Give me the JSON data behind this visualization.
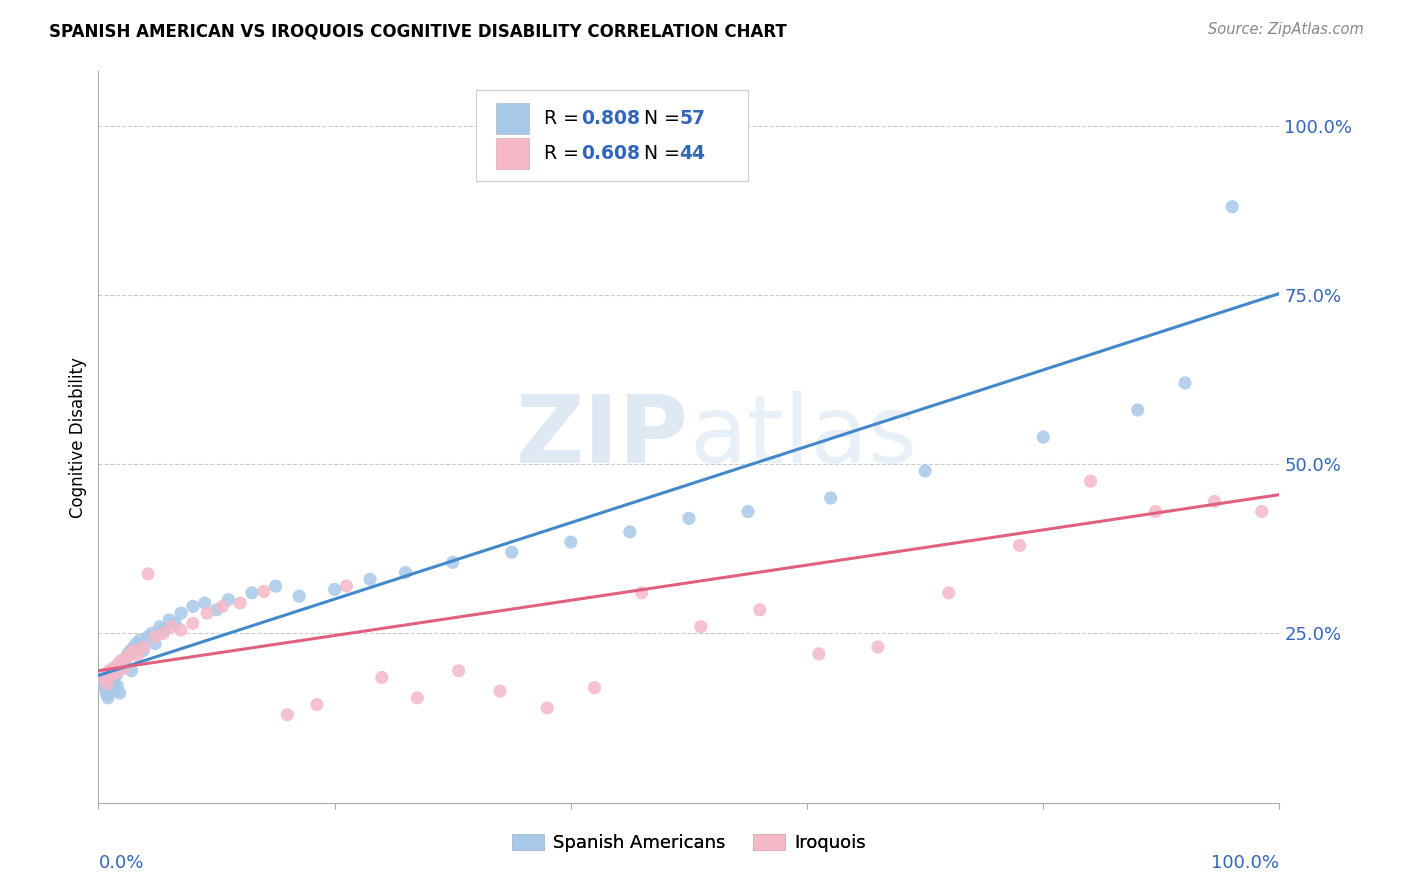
{
  "title": "SPANISH AMERICAN VS IROQUOIS COGNITIVE DISABILITY CORRELATION CHART",
  "source": "Source: ZipAtlas.com",
  "ylabel": "Cognitive Disability",
  "watermark_zip": "ZIP",
  "watermark_atlas": "atlas",
  "legend_bottom": [
    "Spanish Americans",
    "Iroquois"
  ],
  "blue_color": "#a8c8e8",
  "pink_color": "#f4b8c8",
  "blue_line_color": "#4488cc",
  "pink_line_color": "#e06080",
  "ytick_labels": [
    "100.0%",
    "75.0%",
    "50.0%",
    "25.0%"
  ],
  "ytick_values": [
    1.0,
    0.75,
    0.5,
    0.25
  ],
  "xlim": [
    0.0,
    1.0
  ],
  "ylim": [
    0.0,
    1.08
  ],
  "blue_scatter_x": [
    0.003,
    0.004,
    0.005,
    0.006,
    0.007,
    0.008,
    0.009,
    0.01,
    0.011,
    0.012,
    0.013,
    0.014,
    0.015,
    0.016,
    0.017,
    0.018,
    0.02,
    0.021,
    0.022,
    0.024,
    0.025,
    0.027,
    0.028,
    0.03,
    0.032,
    0.035,
    0.038,
    0.042,
    0.045,
    0.048,
    0.052,
    0.055,
    0.06,
    0.065,
    0.07,
    0.08,
    0.09,
    0.1,
    0.11,
    0.13,
    0.15,
    0.17,
    0.2,
    0.23,
    0.26,
    0.3,
    0.35,
    0.4,
    0.45,
    0.5,
    0.55,
    0.62,
    0.7,
    0.8,
    0.88,
    0.92,
    0.96
  ],
  "blue_scatter_y": [
    0.175,
    0.18,
    0.17,
    0.182,
    0.16,
    0.155,
    0.185,
    0.19,
    0.195,
    0.165,
    0.178,
    0.168,
    0.188,
    0.172,
    0.198,
    0.162,
    0.2,
    0.21,
    0.205,
    0.215,
    0.22,
    0.225,
    0.195,
    0.23,
    0.235,
    0.24,
    0.225,
    0.245,
    0.25,
    0.235,
    0.26,
    0.255,
    0.27,
    0.265,
    0.28,
    0.29,
    0.295,
    0.285,
    0.3,
    0.31,
    0.32,
    0.305,
    0.315,
    0.33,
    0.34,
    0.355,
    0.37,
    0.385,
    0.4,
    0.42,
    0.43,
    0.45,
    0.49,
    0.54,
    0.58,
    0.62,
    0.88
  ],
  "pink_scatter_x": [
    0.004,
    0.007,
    0.009,
    0.011,
    0.013,
    0.015,
    0.017,
    0.019,
    0.021,
    0.024,
    0.027,
    0.03,
    0.033,
    0.038,
    0.042,
    0.048,
    0.055,
    0.062,
    0.07,
    0.08,
    0.092,
    0.105,
    0.12,
    0.14,
    0.16,
    0.185,
    0.21,
    0.24,
    0.27,
    0.305,
    0.34,
    0.38,
    0.42,
    0.46,
    0.51,
    0.56,
    0.61,
    0.66,
    0.72,
    0.78,
    0.84,
    0.895,
    0.945,
    0.985
  ],
  "pink_scatter_y": [
    0.185,
    0.175,
    0.195,
    0.188,
    0.2,
    0.192,
    0.205,
    0.21,
    0.198,
    0.215,
    0.22,
    0.225,
    0.218,
    0.23,
    0.338,
    0.245,
    0.25,
    0.26,
    0.255,
    0.265,
    0.28,
    0.29,
    0.295,
    0.312,
    0.13,
    0.145,
    0.32,
    0.185,
    0.155,
    0.195,
    0.165,
    0.14,
    0.17,
    0.31,
    0.26,
    0.285,
    0.22,
    0.23,
    0.31,
    0.38,
    0.475,
    0.43,
    0.445,
    0.43
  ],
  "blue_line_y_start": 0.188,
  "blue_line_y_end": 0.752,
  "pink_line_y_start": 0.195,
  "pink_line_y_end": 0.455,
  "legend_R_blue": "0.808",
  "legend_N_blue": "57",
  "legend_R_pink": "0.608",
  "legend_N_pink": "44",
  "text_color_blue": "#3366bb",
  "background_color": "#ffffff",
  "grid_color": "#cccccc",
  "spine_color": "#aaaaaa"
}
